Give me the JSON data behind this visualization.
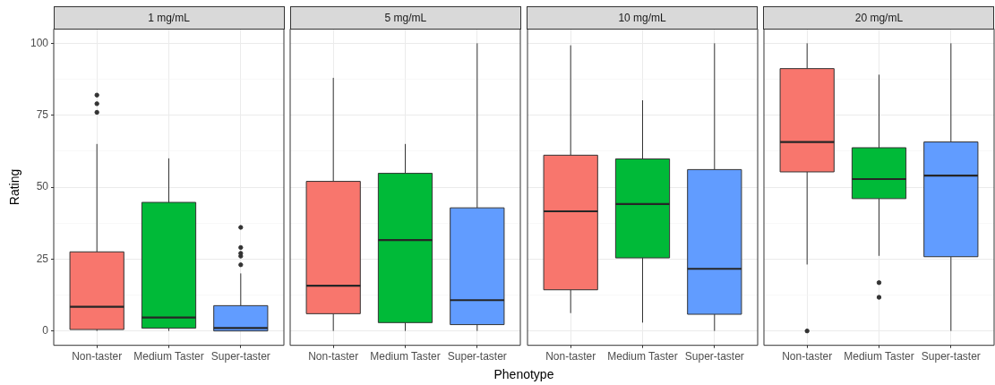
{
  "chart_data": [
    {
      "type": "box",
      "title": "1 mg/mL",
      "ylabel": "Rating",
      "categories": [
        "Non-taster",
        "Medium Taster",
        "Super-taster"
      ],
      "colors": [
        "#f8766d",
        "#00ba38",
        "#619cff"
      ],
      "boxes": [
        {
          "low": 0,
          "q1": 0.5,
          "median": 8.4,
          "q3": 27.5,
          "high": 65,
          "outliers": [
            82,
            79,
            76
          ]
        },
        {
          "low": 0,
          "q1": 1,
          "median": 4.7,
          "q3": 44.7,
          "high": 60
        },
        {
          "low": 0,
          "q1": 0,
          "median": 1,
          "q3": 8.8,
          "high": 20,
          "outliers": [
            36,
            29,
            27,
            26,
            23
          ]
        }
      ],
      "ylim": [
        -5,
        105
      ],
      "yticks": [
        0,
        {
          "value": 12.5,
          "label": null
        },
        25,
        {
          "value": 37.5,
          "label": null
        },
        50,
        {
          "value": 62.5,
          "label": null
        },
        75,
        {
          "value": 87.5,
          "label": null
        },
        100
      ],
      "grid": true
    },
    {
      "type": "box",
      "title": "5 mg/mL",
      "xlabel": "Phenotype",
      "categories": [
        "Non-taster",
        "Medium Taster",
        "Super-taster"
      ],
      "colors": [
        "#f8766d",
        "#00ba38",
        "#619cff"
      ],
      "boxes": [
        {
          "low": 0,
          "q1": 6,
          "median": 15.7,
          "q3": 52,
          "high": 88
        },
        {
          "low": 0,
          "q1": 2.9,
          "median": 31.6,
          "q3": 54.8,
          "high": 65
        },
        {
          "low": 0,
          "q1": 2.2,
          "median": 10.7,
          "q3": 42.8,
          "high": 100
        }
      ],
      "ylim": [
        -5,
        105
      ],
      "yticks": [
        0,
        {
          "value": 12.5,
          "label": null
        },
        25,
        {
          "value": 37.5,
          "label": null
        },
        50,
        {
          "value": 62.5,
          "label": null
        },
        75,
        {
          "value": 87.5,
          "label": null
        },
        100
      ],
      "grid": true,
      "tick_labels": "x"
    },
    {
      "type": "box",
      "title": "10 mg/mL",
      "categories": [
        "Non-taster",
        "Medium Taster",
        "Super-taster"
      ],
      "colors": [
        "#f8766d",
        "#00ba38",
        "#619cff"
      ],
      "boxes": [
        {
          "low": 6.2,
          "q1": 14.3,
          "median": 41.6,
          "q3": 61.1,
          "high": 99.3
        },
        {
          "low": 2.9,
          "q1": 25.4,
          "median": 44.1,
          "q3": 59.8,
          "high": 80.2
        },
        {
          "low": 0,
          "q1": 5.8,
          "median": 21.6,
          "q3": 56.1,
          "high": 100
        }
      ],
      "ylim": [
        -5,
        105
      ],
      "yticks": [
        0,
        {
          "value": 12.5,
          "label": null
        },
        25,
        {
          "value": 37.5,
          "label": null
        },
        50,
        {
          "value": 62.5,
          "label": null
        },
        75,
        {
          "value": 87.5,
          "label": null
        },
        100
      ],
      "grid": true,
      "tick_labels": "x"
    },
    {
      "type": "box",
      "title": "20 mg/mL",
      "categories": [
        "Non-taster",
        "Medium Taster",
        "Super-taster"
      ],
      "colors": [
        "#f8766d",
        "#00ba38",
        "#619cff"
      ],
      "boxes": [
        {
          "low": 23.1,
          "q1": 55.3,
          "median": 65.7,
          "q3": 91.2,
          "high": 100,
          "outliers": [
            0
          ]
        },
        {
          "low": 26.1,
          "q1": 46,
          "median": 52.8,
          "q3": 63.7,
          "high": 89.1,
          "outliers": [
            16.8,
            11.7
          ]
        },
        {
          "low": 0,
          "q1": 25.8,
          "median": 54,
          "q3": 65.7,
          "high": 100
        }
      ],
      "ylim": [
        -5,
        105
      ],
      "yticks": [
        0,
        {
          "value": 12.5,
          "label": null
        },
        25,
        {
          "value": 37.5,
          "label": null
        },
        50,
        {
          "value": 62.5,
          "label": null
        },
        75,
        {
          "value": 87.5,
          "label": null
        },
        100
      ],
      "grid": true,
      "tick_labels": "x"
    }
  ]
}
